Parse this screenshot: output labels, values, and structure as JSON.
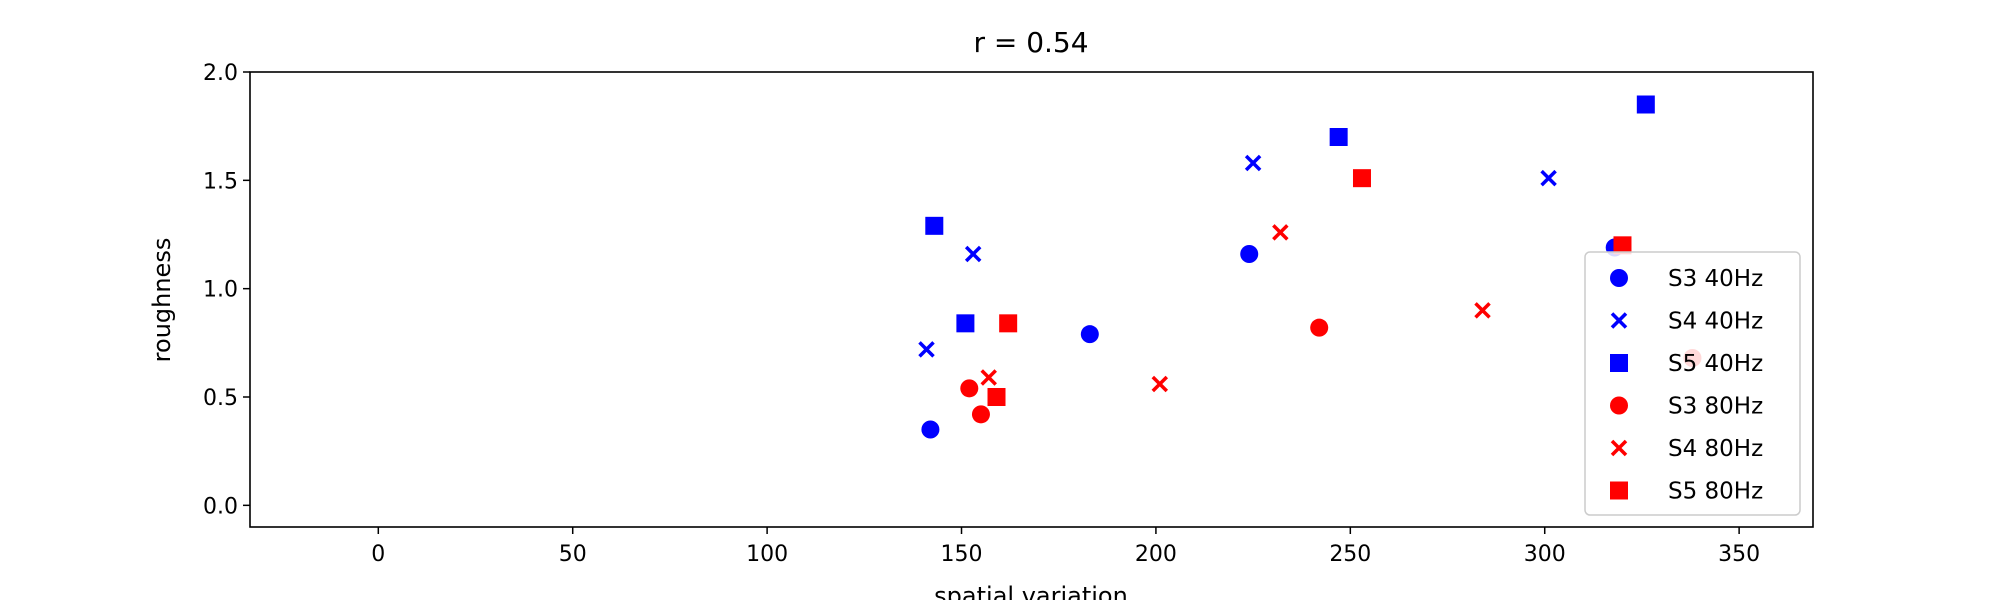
{
  "chart_data": {
    "type": "scatter",
    "title": "r = 0.54",
    "xlabel": "spatial variation",
    "ylabel": "roughness",
    "xlim": [
      -33,
      369
    ],
    "ylim": [
      -0.1,
      2.0
    ],
    "xticks": [
      0,
      50,
      100,
      150,
      200,
      250,
      300,
      350
    ],
    "yticks": [
      0.0,
      0.5,
      1.0,
      1.5,
      2.0
    ],
    "xtick_labels": [
      "0",
      "50",
      "100",
      "150",
      "200",
      "250",
      "300",
      "350"
    ],
    "ytick_labels": [
      "0.0",
      "0.5",
      "1.0",
      "1.5",
      "2.0"
    ],
    "legend_position": "right",
    "series": [
      {
        "name": "S3 40Hz",
        "marker": "circle",
        "color": "#0000ff",
        "points": [
          [
            142,
            0.35
          ],
          [
            183,
            0.79
          ],
          [
            224,
            1.16
          ],
          [
            318,
            1.19
          ]
        ]
      },
      {
        "name": "S4 40Hz",
        "marker": "x",
        "color": "#0000ff",
        "points": [
          [
            141,
            0.72
          ],
          [
            153,
            1.16
          ],
          [
            225,
            1.58
          ],
          [
            301,
            1.51
          ]
        ]
      },
      {
        "name": "S5 40Hz",
        "marker": "square",
        "color": "#0000ff",
        "points": [
          [
            143,
            1.29
          ],
          [
            151,
            0.84
          ],
          [
            247,
            1.7
          ],
          [
            326,
            1.85
          ]
        ]
      },
      {
        "name": "S3 80Hz",
        "marker": "circle",
        "color": "#ff0000",
        "points": [
          [
            152,
            0.54
          ],
          [
            155,
            0.42
          ],
          [
            242,
            0.82
          ],
          [
            338,
            0.68
          ]
        ]
      },
      {
        "name": "S4 80Hz",
        "marker": "x",
        "color": "#ff0000",
        "points": [
          [
            157,
            0.59
          ],
          [
            201,
            0.56
          ],
          [
            232,
            1.26
          ],
          [
            284,
            0.9
          ]
        ]
      },
      {
        "name": "S5 80Hz",
        "marker": "square",
        "color": "#ff0000",
        "points": [
          [
            159,
            0.5
          ],
          [
            162,
            0.84
          ],
          [
            253,
            1.51
          ],
          [
            320,
            1.2
          ]
        ]
      }
    ]
  }
}
